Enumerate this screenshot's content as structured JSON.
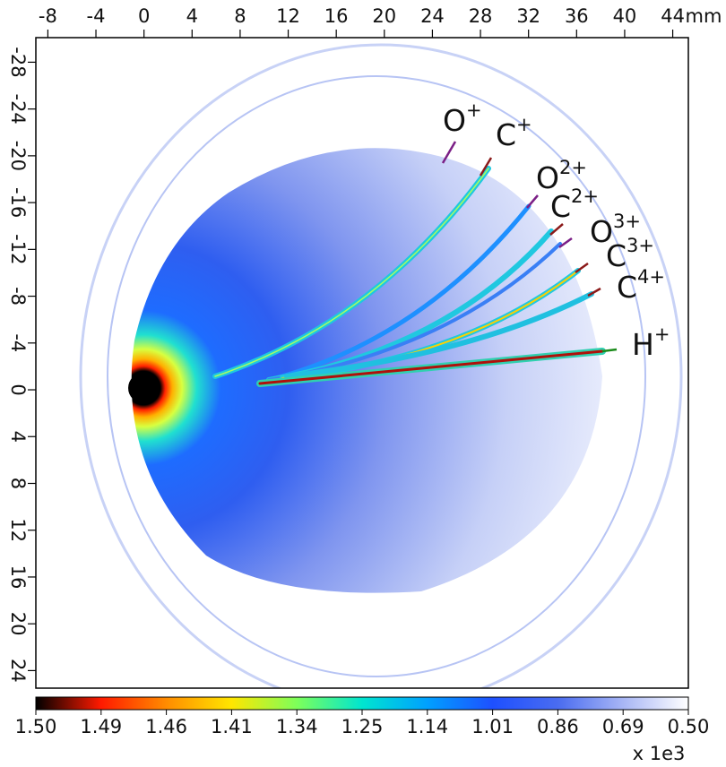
{
  "chart_data": {
    "type": "image",
    "x_unit": "mm",
    "xlim": [
      -9,
      45.3
    ],
    "ylim": [
      -30.1,
      25.5
    ],
    "xticks": [
      -8,
      -4,
      0,
      4,
      8,
      12,
      16,
      20,
      24,
      28,
      32,
      36,
      40,
      44
    ],
    "yticks": [
      -28,
      -24,
      -20,
      -16,
      -12,
      -8,
      -4,
      0,
      4,
      8,
      12,
      16,
      20,
      24
    ],
    "colorbar": {
      "ticks": [
        {
          "value": 1.5,
          "label": "1.50"
        },
        {
          "value": 1.49,
          "label": "1.49"
        },
        {
          "value": 1.46,
          "label": "1.46"
        },
        {
          "value": 1.41,
          "label": "1.41"
        },
        {
          "value": 1.34,
          "label": "1.34"
        },
        {
          "value": 1.25,
          "label": "1.25"
        },
        {
          "value": 1.14,
          "label": "1.14"
        },
        {
          "value": 1.01,
          "label": "1.01"
        },
        {
          "value": 0.86,
          "label": "0.86"
        },
        {
          "value": 0.69,
          "label": "0.69"
        },
        {
          "value": 0.5,
          "label": "0.50"
        }
      ],
      "multiplier": "x 1e3",
      "colors": [
        "#000000",
        "#ff1a00",
        "#ff8c00",
        "#ffe600",
        "#7dff5a",
        "#00e5d0",
        "#00a0ff",
        "#1e50ff",
        "#4a6cf0",
        "#a8b6f5",
        "#ffffff"
      ]
    },
    "annotations": [
      {
        "label": "O",
        "charge": "+",
        "color": "#7b1f86"
      },
      {
        "label": "C",
        "charge": "+",
        "color": "#8b1a1a"
      },
      {
        "label": "O",
        "charge": "2+",
        "color": "#7b1f86"
      },
      {
        "label": "C",
        "charge": "2+",
        "color": "#8b1a1a"
      },
      {
        "label": "O",
        "charge": "3+",
        "color": "#7b1f86"
      },
      {
        "label": "C",
        "charge": "3+",
        "color": "#8b1a1a"
      },
      {
        "label": "C",
        "charge": "4+",
        "color": "#8b1a1a"
      },
      {
        "label": "H",
        "charge": "+",
        "color": "#1a8a1a"
      }
    ]
  }
}
